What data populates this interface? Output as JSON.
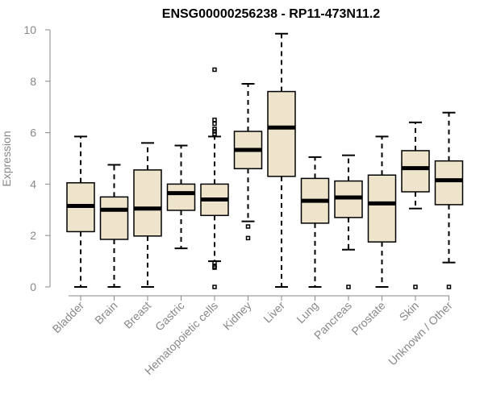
{
  "chart_data": {
    "type": "boxplot",
    "title": "ENSG00000256238 - RP11-473N11.2",
    "xlabel": "",
    "ylabel": "Expression",
    "ylim": [
      0,
      10
    ],
    "yticks": [
      0,
      2,
      4,
      6,
      8,
      10
    ],
    "box_color": "#ede4cb",
    "categories": [
      "Bladder",
      "Brain",
      "Breast",
      "Gastric",
      "Hematopoietic cells",
      "Kidney",
      "Liver",
      "Lung",
      "Pancreas",
      "Prostate",
      "Skin",
      "Unknown / Other"
    ],
    "series": [
      {
        "name": "Bladder",
        "min": 0,
        "q1": 2.15,
        "median": 3.15,
        "q3": 4.05,
        "max": 5.85,
        "outliers": []
      },
      {
        "name": "Brain",
        "min": 0,
        "q1": 1.85,
        "median": 3.0,
        "q3": 3.5,
        "max": 4.75,
        "outliers": []
      },
      {
        "name": "Breast",
        "min": 0,
        "q1": 1.98,
        "median": 3.05,
        "q3": 4.55,
        "max": 5.6,
        "outliers": []
      },
      {
        "name": "Gastric",
        "min": 1.5,
        "q1": 2.98,
        "median": 3.65,
        "q3": 4.0,
        "max": 5.5,
        "outliers": []
      },
      {
        "name": "Hematopoietic cells",
        "min": 1.0,
        "q1": 2.78,
        "median": 3.4,
        "q3": 4.0,
        "max": 5.85,
        "outliers": [
          8.45,
          6.5,
          6.35,
          6.15,
          6.05,
          5.95,
          0.95,
          0.8,
          0.75,
          0.0
        ]
      },
      {
        "name": "Kidney",
        "min": 2.55,
        "q1": 4.6,
        "median": 5.33,
        "q3": 6.05,
        "max": 7.9,
        "outliers": [
          2.35,
          1.9
        ]
      },
      {
        "name": "Liver",
        "min": 0,
        "q1": 4.3,
        "median": 6.2,
        "q3": 7.6,
        "max": 9.85,
        "outliers": []
      },
      {
        "name": "Lung",
        "min": 0,
        "q1": 2.48,
        "median": 3.35,
        "q3": 4.22,
        "max": 5.05,
        "outliers": []
      },
      {
        "name": "Pancreas",
        "min": 1.45,
        "q1": 2.7,
        "median": 3.48,
        "q3": 4.12,
        "max": 5.12,
        "outliers": [
          0.0
        ]
      },
      {
        "name": "Prostate",
        "min": 0,
        "q1": 1.75,
        "median": 3.25,
        "q3": 4.35,
        "max": 5.85,
        "outliers": []
      },
      {
        "name": "Skin",
        "min": 3.05,
        "q1": 3.7,
        "median": 4.62,
        "q3": 5.3,
        "max": 6.4,
        "outliers": [
          0.0
        ]
      },
      {
        "name": "Unknown / Other",
        "min": 0.95,
        "q1": 3.2,
        "median": 4.15,
        "q3": 4.9,
        "max": 6.78,
        "outliers": [
          0.0
        ]
      }
    ]
  }
}
